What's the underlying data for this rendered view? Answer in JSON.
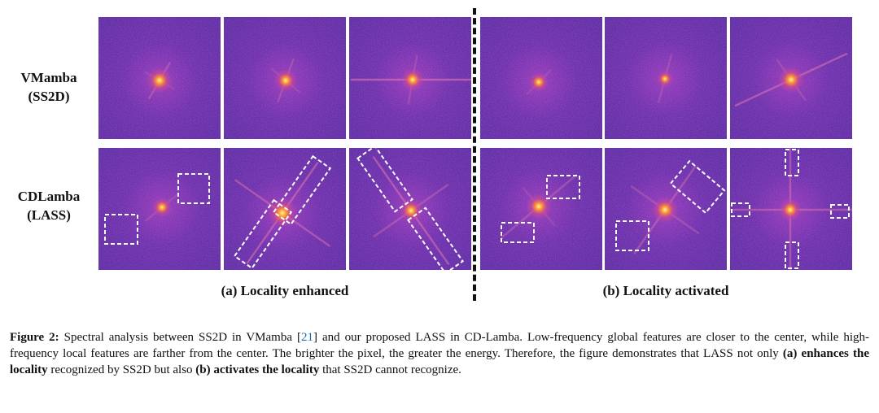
{
  "rows": [
    {
      "line1": "VMamba",
      "line2": "(SS2D)"
    },
    {
      "line1": "CDLamba",
      "line2": "(LASS)"
    }
  ],
  "subcaptions": {
    "a": "(a) Locality enhanced",
    "b": "(b) Locality activated"
  },
  "caption": {
    "label": "Figure 2:",
    "text1": " Spectral analysis between SS2D in VMamba [",
    "ref": "21",
    "text2": "] and our proposed LASS in CD-Lamba. Low-frequency global features are closer to the center, while high-frequency local features are farther from the center. The brighter the pixel, the greater the energy. Therefore, the figure demonstrates that LASS not only ",
    "bold1": "(a) enhances the locality",
    "text3": " recognized by SS2D but also ",
    "bold2": "(b) activates the locality",
    "text4": " that SS2D cannot recognize."
  },
  "colors": {
    "background": "#4a1fa0",
    "glow": "#ff9a2a",
    "highlight_box": "#ffffff"
  }
}
